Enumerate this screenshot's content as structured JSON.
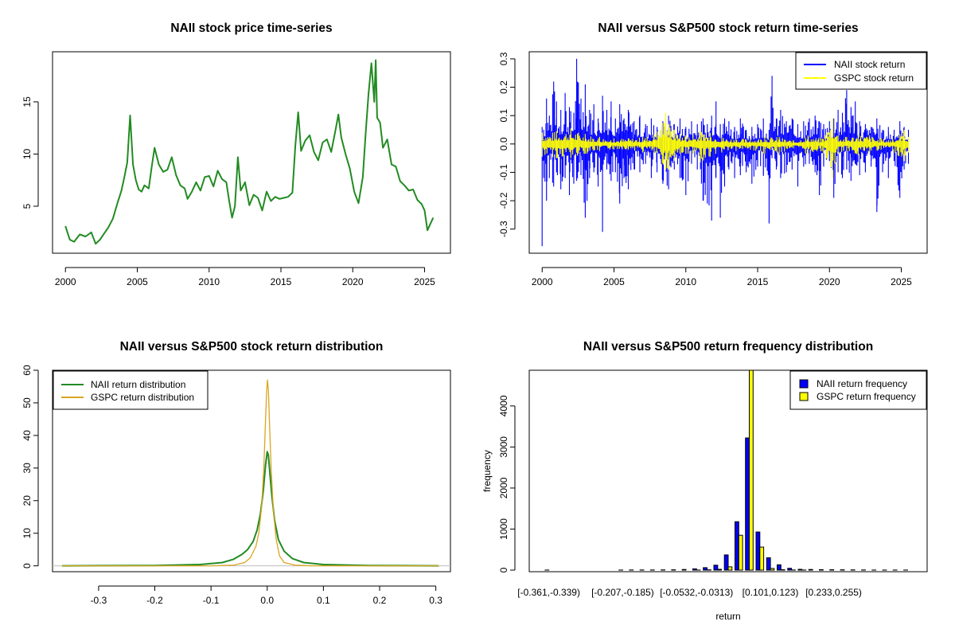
{
  "chart_data": [
    {
      "type": "line",
      "title": "NAII stock price time-series",
      "xlabel": "",
      "ylabel": "",
      "xlim": [
        1999.1,
        2026.8
      ],
      "ylim": [
        0.5,
        19.8
      ],
      "xticks": [
        "2000",
        "2005",
        "2010",
        "2015",
        "2020",
        "2025"
      ],
      "yticks": [
        "5",
        "10",
        "15"
      ],
      "color": "#228B22",
      "series": [
        {
          "x": [
            2000.0,
            2000.3,
            2000.6,
            2001.0,
            2001.4,
            2001.8,
            2002.1,
            2002.4,
            2002.7,
            2003.0,
            2003.3,
            2003.6,
            2003.9,
            2004.1,
            2004.3,
            2004.5,
            2004.7,
            2004.9,
            2005.1,
            2005.3,
            2005.5,
            2005.8,
            2006.0,
            2006.2,
            2006.5,
            2006.8,
            2007.1,
            2007.4,
            2007.7,
            2008.0,
            2008.3,
            2008.5,
            2008.8,
            2009.1,
            2009.4,
            2009.7,
            2010.0,
            2010.3,
            2010.6,
            2010.9,
            2011.2,
            2011.4,
            2011.6,
            2011.8,
            2012.0,
            2012.2,
            2012.5,
            2012.8,
            2013.1,
            2013.4,
            2013.7,
            2014.0,
            2014.3,
            2014.6,
            2014.9,
            2015.2,
            2015.5,
            2015.8,
            2016.0,
            2016.2,
            2016.4,
            2016.7,
            2017.0,
            2017.3,
            2017.6,
            2017.9,
            2018.2,
            2018.5,
            2018.8,
            2019.0,
            2019.2,
            2019.5,
            2019.8,
            2020.1,
            2020.4,
            2020.7,
            2020.9,
            2021.1,
            2021.3,
            2021.5,
            2021.6,
            2021.7,
            2021.9,
            2022.1,
            2022.4,
            2022.7,
            2023.0,
            2023.3,
            2023.6,
            2023.9,
            2024.2,
            2024.5,
            2024.8,
            2025.0,
            2025.2,
            2025.4,
            2025.6
          ],
          "y": [
            3.1,
            1.8,
            1.6,
            2.3,
            2.1,
            2.5,
            1.4,
            1.8,
            2.4,
            3.0,
            3.8,
            5.2,
            6.5,
            7.8,
            9.2,
            13.7,
            9.0,
            7.5,
            6.6,
            6.4,
            7.0,
            6.7,
            8.7,
            10.6,
            9.0,
            8.3,
            8.5,
            9.7,
            8.0,
            7.0,
            6.7,
            5.7,
            6.4,
            7.3,
            6.5,
            7.8,
            7.9,
            6.9,
            8.4,
            7.6,
            7.3,
            5.5,
            3.9,
            5.0,
            9.7,
            6.5,
            7.3,
            5.1,
            6.1,
            5.8,
            4.6,
            6.4,
            5.5,
            5.9,
            5.7,
            5.8,
            5.9,
            6.3,
            10.8,
            14.0,
            10.3,
            11.3,
            11.8,
            10.2,
            9.4,
            11.1,
            11.4,
            10.2,
            12.3,
            13.8,
            11.6,
            10.0,
            8.6,
            6.4,
            5.3,
            7.8,
            12.0,
            15.8,
            18.7,
            15.0,
            19.0,
            13.5,
            13.0,
            10.6,
            11.4,
            9.0,
            8.8,
            7.4,
            7.0,
            6.5,
            6.6,
            5.6,
            5.2,
            4.6,
            2.7,
            3.3,
            3.9
          ]
        }
      ]
    },
    {
      "type": "line",
      "title": "NAII versus S&P500 stock return time-series",
      "xlabel": "",
      "ylabel": "",
      "xlim": [
        1999.1,
        2026.8
      ],
      "ylim": [
        -0.385,
        0.325
      ],
      "xticks": [
        "2000",
        "2005",
        "2010",
        "2015",
        "2020",
        "2025"
      ],
      "yticks": [
        "-0.3",
        "-0.2",
        "-0.1",
        "0.0",
        "0.1",
        "0.2",
        "0.3"
      ],
      "legend": "top-right",
      "series": [
        {
          "name": "NAII stock return",
          "color": "#0000FF",
          "x": [
            2000.0,
            2000.1,
            2000.3,
            2000.5,
            2000.8,
            2001.0,
            2001.3,
            2001.6,
            2001.9,
            2002.2,
            2002.4,
            2002.7,
            2003.0,
            2003.3,
            2003.6,
            2003.9,
            2004.2,
            2004.5,
            2004.8,
            2005.1,
            2005.4,
            2005.7,
            2006.0,
            2006.4,
            2006.8,
            2007.2,
            2007.6,
            2008.0,
            2008.4,
            2008.8,
            2009.2,
            2009.6,
            2010.0,
            2010.4,
            2010.8,
            2011.2,
            2011.5,
            2011.8,
            2012.1,
            2012.4,
            2012.7,
            2013.0,
            2013.4,
            2013.8,
            2014.2,
            2014.6,
            2015.0,
            2015.4,
            2015.8,
            2016.0,
            2016.3,
            2016.6,
            2017.0,
            2017.4,
            2017.8,
            2018.2,
            2018.6,
            2019.0,
            2019.3,
            2019.6,
            2020.0,
            2020.3,
            2020.6,
            2020.9,
            2021.2,
            2021.5,
            2021.8,
            2022.1,
            2022.5,
            2022.9,
            2023.3,
            2023.7,
            2024.1,
            2024.5,
            2024.9,
            2025.2,
            2025.5
          ],
          "hi": [
            0.06,
            0.05,
            0.16,
            0.1,
            0.22,
            0.15,
            0.12,
            0.18,
            0.13,
            0.11,
            0.3,
            0.16,
            0.21,
            0.12,
            0.14,
            0.09,
            0.17,
            0.12,
            0.15,
            0.09,
            0.14,
            0.09,
            0.12,
            0.08,
            0.1,
            0.07,
            0.09,
            0.06,
            0.08,
            0.1,
            0.07,
            0.09,
            0.06,
            0.08,
            0.07,
            0.09,
            0.07,
            0.1,
            0.15,
            0.07,
            0.09,
            0.08,
            0.06,
            0.09,
            0.05,
            0.06,
            0.07,
            0.09,
            0.05,
            0.24,
            0.09,
            0.12,
            0.08,
            0.09,
            0.07,
            0.08,
            0.09,
            0.1,
            0.08,
            0.07,
            0.08,
            0.09,
            0.12,
            0.11,
            0.19,
            0.13,
            0.15,
            0.08,
            0.07,
            0.06,
            0.09,
            0.05,
            0.06,
            0.05,
            0.08,
            0.06,
            0.05
          ],
          "lo": [
            -0.36,
            -0.12,
            -0.2,
            -0.12,
            -0.15,
            -0.1,
            -0.16,
            -0.12,
            -0.18,
            -0.14,
            -0.13,
            -0.11,
            -0.26,
            -0.12,
            -0.1,
            -0.15,
            -0.31,
            -0.09,
            -0.13,
            -0.1,
            -0.21,
            -0.12,
            -0.16,
            -0.09,
            -0.1,
            -0.07,
            -0.12,
            -0.1,
            -0.14,
            -0.16,
            -0.09,
            -0.12,
            -0.18,
            -0.07,
            -0.09,
            -0.2,
            -0.21,
            -0.27,
            -0.12,
            -0.26,
            -0.15,
            -0.09,
            -0.12,
            -0.11,
            -0.1,
            -0.14,
            -0.08,
            -0.11,
            -0.28,
            -0.05,
            -0.09,
            -0.12,
            -0.1,
            -0.09,
            -0.15,
            -0.08,
            -0.07,
            -0.1,
            -0.18,
            -0.08,
            -0.06,
            -0.19,
            -0.1,
            -0.12,
            -0.09,
            -0.13,
            -0.07,
            -0.11,
            -0.1,
            -0.08,
            -0.24,
            -0.1,
            -0.12,
            -0.06,
            -0.19,
            -0.09,
            -0.07
          ]
        },
        {
          "name": "GSPC stock return",
          "color": "#FFFF00",
          "x": [
            2000.0,
            2001.0,
            2002.0,
            2003.0,
            2004.0,
            2005.0,
            2006.0,
            2007.0,
            2007.8,
            2008.6,
            2008.8,
            2009.2,
            2009.6,
            2010.0,
            2010.5,
            2011.0,
            2011.7,
            2012.5,
            2013.5,
            2014.5,
            2015.5,
            2016.5,
            2017.5,
            2018.5,
            2019.5,
            2020.2,
            2020.6,
            2021.2,
            2022.0,
            2022.8,
            2023.6,
            2024.4,
            2025.2,
            2025.5
          ],
          "hi": [
            0.04,
            0.045,
            0.055,
            0.035,
            0.025,
            0.02,
            0.02,
            0.025,
            0.035,
            0.11,
            0.07,
            0.05,
            0.035,
            0.03,
            0.03,
            0.045,
            0.04,
            0.025,
            0.02,
            0.018,
            0.025,
            0.025,
            0.012,
            0.03,
            0.02,
            0.09,
            0.03,
            0.025,
            0.035,
            0.03,
            0.02,
            0.02,
            0.05,
            0.025
          ],
          "lo": [
            -0.045,
            -0.05,
            -0.05,
            -0.035,
            -0.025,
            -0.02,
            -0.02,
            -0.03,
            -0.035,
            -0.09,
            -0.09,
            -0.06,
            -0.035,
            -0.035,
            -0.035,
            -0.065,
            -0.045,
            -0.03,
            -0.025,
            -0.02,
            -0.035,
            -0.035,
            -0.015,
            -0.04,
            -0.025,
            -0.12,
            -0.035,
            -0.025,
            -0.04,
            -0.035,
            -0.02,
            -0.025,
            -0.06,
            -0.03
          ]
        }
      ]
    },
    {
      "type": "line",
      "title": "NAII versus S&P500 stock return distribution",
      "xlabel": "",
      "ylabel": "",
      "xlim": [
        -0.382,
        0.326
      ],
      "ylim": [
        -1.8,
        60
      ],
      "xticks": [
        "-0.3",
        "-0.2",
        "-0.1",
        "0.0",
        "0.1",
        "0.2",
        "0.3"
      ],
      "yticks": [
        "0",
        "10",
        "20",
        "30",
        "40",
        "50",
        "60"
      ],
      "legend": "top-left",
      "series": [
        {
          "name": "NAII return distribution",
          "color": "#228B22",
          "x": [
            -0.365,
            -0.2,
            -0.12,
            -0.08,
            -0.06,
            -0.045,
            -0.035,
            -0.025,
            -0.018,
            -0.012,
            -0.007,
            -0.003,
            0.0,
            0.002,
            0.004,
            0.008,
            0.013,
            0.02,
            0.03,
            0.045,
            0.065,
            0.1,
            0.18,
            0.305
          ],
          "y": [
            0.0,
            0.1,
            0.4,
            1.0,
            2.0,
            3.5,
            5.0,
            7.5,
            11.0,
            16.0,
            23.0,
            31.0,
            35.0,
            34.0,
            30.0,
            22.0,
            14.0,
            8.0,
            4.5,
            2.2,
            1.0,
            0.4,
            0.1,
            0.0
          ]
        },
        {
          "name": "GSPC return distribution",
          "color": "#DAA520",
          "x": [
            -0.365,
            -0.1,
            -0.06,
            -0.04,
            -0.03,
            -0.02,
            -0.015,
            -0.01,
            -0.006,
            -0.003,
            -0.001,
            0.0005,
            0.002,
            0.004,
            0.007,
            0.011,
            0.016,
            0.022,
            0.03,
            0.05,
            0.08,
            0.305
          ],
          "y": [
            0.0,
            0.0,
            0.2,
            1.0,
            2.5,
            6.0,
            10.0,
            18.0,
            30.0,
            45.0,
            54.0,
            57.0,
            54.0,
            44.0,
            30.0,
            17.0,
            8.0,
            3.0,
            1.0,
            0.2,
            0.0,
            0.0
          ]
        }
      ]
    },
    {
      "type": "bar",
      "title": "NAII versus S&P500 return frequency distribution",
      "xlabel": "return",
      "ylabel": "frequency",
      "ylim": [
        0,
        4870
      ],
      "yticks": [
        "0",
        "1000",
        "2000",
        "3000",
        "4000"
      ],
      "xticklabels": [
        "[-0.361,-0.339)",
        "[-0.207,-0.185)",
        "[-0.0532,-0.0313)",
        "[0.101,0.123)",
        "[0.233,0.255)"
      ],
      "legend": "top-right",
      "series": [
        {
          "name": "NAII return frequency",
          "color": "#0000FF",
          "values": [
            1,
            0,
            0,
            0,
            0,
            0,
            0,
            2,
            4,
            3,
            3,
            5,
            8,
            15,
            32,
            60,
            120,
            370,
            1180,
            3220,
            930,
            300,
            130,
            45,
            20,
            15,
            12,
            10,
            8,
            5,
            3,
            2,
            1,
            1,
            1
          ]
        },
        {
          "name": "GSPC return frequency",
          "color": "#FFFF00",
          "values": [
            0,
            0,
            0,
            0,
            0,
            0,
            0,
            0,
            0,
            0,
            0,
            0,
            0,
            0,
            2,
            8,
            20,
            80,
            850,
            4870,
            560,
            40,
            10,
            3,
            1,
            0,
            0,
            0,
            0,
            0,
            0,
            0,
            0,
            0,
            0
          ]
        }
      ]
    }
  ]
}
